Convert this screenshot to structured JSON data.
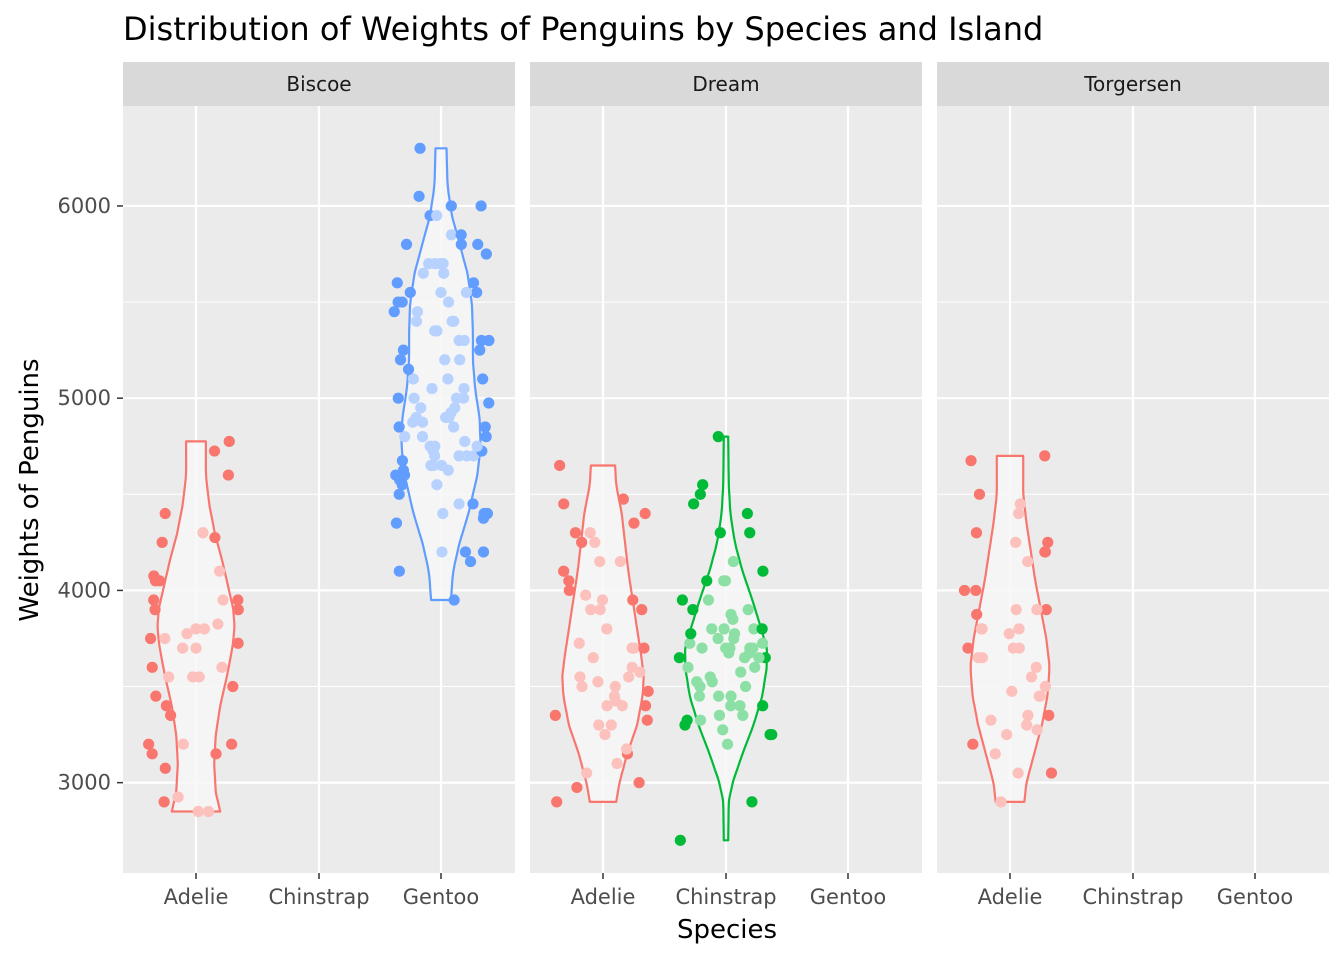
{
  "chart_data": {
    "type": "violin",
    "title": "Distribution of Weights of Penguins by Species and Island",
    "xlabel": "Species",
    "ylabel": "Weights of Penguins",
    "ylim": [
      2530,
      6520
    ],
    "yticks": [
      3000,
      4000,
      5000,
      6000
    ],
    "categories": [
      "Adelie",
      "Chinstrap",
      "Gentoo"
    ],
    "grid": true,
    "legend": "none",
    "colors": {
      "Adelie": "#F8766D",
      "Chinstrap": "#00BA38",
      "Gentoo": "#619CFF",
      "panel_bg": "#EBEBEB",
      "strip_bg": "#D9D9D9",
      "grid": "#FFFFFF",
      "violin_fill": "#F7F7F7"
    },
    "facets": [
      {
        "island": "Biscoe",
        "groups": [
          {
            "species": "Adelie",
            "min": 2850,
            "max": 4775,
            "profile": [
              [
                2850,
                0.44
              ],
              [
                2950,
                0.36
              ],
              [
                3100,
                0.33
              ],
              [
                3250,
                0.36
              ],
              [
                3400,
                0.44
              ],
              [
                3550,
                0.56
              ],
              [
                3700,
                0.66
              ],
              [
                3800,
                0.7
              ],
              [
                3900,
                0.68
              ],
              [
                4000,
                0.6
              ],
              [
                4150,
                0.48
              ],
              [
                4300,
                0.34
              ],
              [
                4450,
                0.24
              ],
              [
                4600,
                0.18
              ],
              [
                4775,
                0.18
              ]
            ],
            "values": [
              2850,
              2850,
              2900,
              2925,
              3075,
              3150,
              3150,
              3200,
              3200,
              3200,
              3350,
              3400,
              3450,
              3500,
              3550,
              3550,
              3550,
              3600,
              3600,
              3700,
              3700,
              3725,
              3750,
              3750,
              3775,
              3800,
              3800,
              3825,
              3900,
              3900,
              3950,
              3950,
              3950,
              4050,
              4050,
              4075,
              4100,
              4250,
              4275,
              4300,
              4400,
              4600,
              4725,
              4775
            ]
          },
          {
            "species": "Gentoo",
            "min": 3950,
            "max": 6300,
            "profile": [
              [
                3950,
                0.18
              ],
              [
                4100,
                0.22
              ],
              [
                4250,
                0.34
              ],
              [
                4400,
                0.5
              ],
              [
                4600,
                0.66
              ],
              [
                4750,
                0.72
              ],
              [
                4900,
                0.7
              ],
              [
                5050,
                0.62
              ],
              [
                5200,
                0.58
              ],
              [
                5350,
                0.58
              ],
              [
                5500,
                0.56
              ],
              [
                5650,
                0.48
              ],
              [
                5800,
                0.34
              ],
              [
                5950,
                0.2
              ],
              [
                6100,
                0.12
              ],
              [
                6300,
                0.1
              ]
            ],
            "values": [
              3950,
              4100,
              4150,
              4200,
              4200,
              4200,
              4350,
              4375,
              4400,
              4400,
              4400,
              4450,
              4450,
              4500,
              4550,
              4550,
              4575,
              4600,
              4600,
              4625,
              4625,
              4650,
              4650,
              4650,
              4650,
              4675,
              4700,
              4700,
              4700,
              4700,
              4725,
              4725,
              4750,
              4750,
              4750,
              4775,
              4800,
              4800,
              4800,
              4850,
              4850,
              4850,
              4875,
              4875,
              4900,
              4900,
              4900,
              4925,
              4950,
              4950,
              4975,
              5000,
              5000,
              5000,
              5000,
              5050,
              5050,
              5100,
              5100,
              5100,
              5150,
              5200,
              5200,
              5200,
              5250,
              5250,
              5300,
              5300,
              5300,
              5300,
              5350,
              5350,
              5400,
              5400,
              5400,
              5450,
              5450,
              5500,
              5500,
              5500,
              5550,
              5550,
              5550,
              5550,
              5600,
              5600,
              5650,
              5650,
              5700,
              5700,
              5700,
              5700,
              5750,
              5800,
              5800,
              5800,
              5850,
              5850,
              5950,
              5950,
              6000,
              6000,
              6050,
              6300
            ]
          }
        ]
      },
      {
        "island": "Dream",
        "groups": [
          {
            "species": "Adelie",
            "min": 2900,
            "max": 4650,
            "profile": [
              [
                2900,
                0.24
              ],
              [
                3000,
                0.3
              ],
              [
                3150,
                0.44
              ],
              [
                3300,
                0.62
              ],
              [
                3450,
                0.72
              ],
              [
                3550,
                0.74
              ],
              [
                3650,
                0.7
              ],
              [
                3800,
                0.62
              ],
              [
                3950,
                0.54
              ],
              [
                4100,
                0.46
              ],
              [
                4250,
                0.4
              ],
              [
                4400,
                0.34
              ],
              [
                4550,
                0.24
              ],
              [
                4650,
                0.22
              ]
            ],
            "values": [
              2900,
              2975,
              3000,
              3050,
              3100,
              3150,
              3175,
              3250,
              3300,
              3300,
              3325,
              3350,
              3400,
              3400,
              3400,
              3425,
              3450,
              3475,
              3500,
              3500,
              3525,
              3550,
              3550,
              3575,
              3600,
              3650,
              3700,
              3700,
              3700,
              3725,
              3800,
              3900,
              3900,
              3900,
              3950,
              3950,
              3975,
              4000,
              4050,
              4100,
              4150,
              4150,
              4250,
              4250,
              4300,
              4300,
              4350,
              4400,
              4450,
              4475,
              4650
            ]
          },
          {
            "species": "Chinstrap",
            "min": 2700,
            "max": 4800,
            "profile": [
              [
                2700,
                0.04
              ],
              [
                2900,
                0.05
              ],
              [
                3000,
                0.12
              ],
              [
                3150,
                0.3
              ],
              [
                3300,
                0.5
              ],
              [
                3450,
                0.66
              ],
              [
                3600,
                0.74
              ],
              [
                3700,
                0.74
              ],
              [
                3800,
                0.64
              ],
              [
                3950,
                0.48
              ],
              [
                4100,
                0.3
              ],
              [
                4250,
                0.16
              ],
              [
                4400,
                0.08
              ],
              [
                4550,
                0.05
              ],
              [
                4800,
                0.04
              ]
            ],
            "values": [
              2700,
              2900,
              3200,
              3250,
              3250,
              3275,
              3300,
              3325,
              3325,
              3350,
              3350,
              3400,
              3400,
              3400,
              3450,
              3450,
              3450,
              3500,
              3500,
              3525,
              3525,
              3550,
              3575,
              3600,
              3600,
              3650,
              3650,
              3650,
              3650,
              3675,
              3675,
              3700,
              3700,
              3700,
              3700,
              3700,
              3725,
              3725,
              3750,
              3750,
              3775,
              3775,
              3800,
              3800,
              3800,
              3800,
              3850,
              3875,
              3900,
              3900,
              3950,
              3950,
              4050,
              4050,
              4050,
              4100,
              4150,
              4300,
              4300,
              4400,
              4450,
              4500,
              4550,
              4800
            ]
          }
        ]
      },
      {
        "island": "Torgersen",
        "groups": [
          {
            "species": "Adelie",
            "min": 2900,
            "max": 4700,
            "profile": [
              [
                2900,
                0.26
              ],
              [
                3000,
                0.3
              ],
              [
                3150,
                0.44
              ],
              [
                3300,
                0.58
              ],
              [
                3450,
                0.68
              ],
              [
                3600,
                0.72
              ],
              [
                3750,
                0.66
              ],
              [
                3900,
                0.56
              ],
              [
                4050,
                0.46
              ],
              [
                4200,
                0.38
              ],
              [
                4350,
                0.3
              ],
              [
                4500,
                0.24
              ],
              [
                4700,
                0.24
              ]
            ],
            "values": [
              2900,
              3050,
              3050,
              3150,
              3200,
              3250,
              3275,
              3300,
              3325,
              3350,
              3350,
              3450,
              3450,
              3475,
              3500,
              3550,
              3600,
              3650,
              3650,
              3700,
              3700,
              3700,
              3775,
              3800,
              3800,
              3800,
              3875,
              3900,
              3900,
              3900,
              4000,
              4000,
              4150,
              4200,
              4200,
              4250,
              4250,
              4300,
              4400,
              4450,
              4500,
              4675,
              4700
            ]
          }
        ]
      }
    ]
  }
}
